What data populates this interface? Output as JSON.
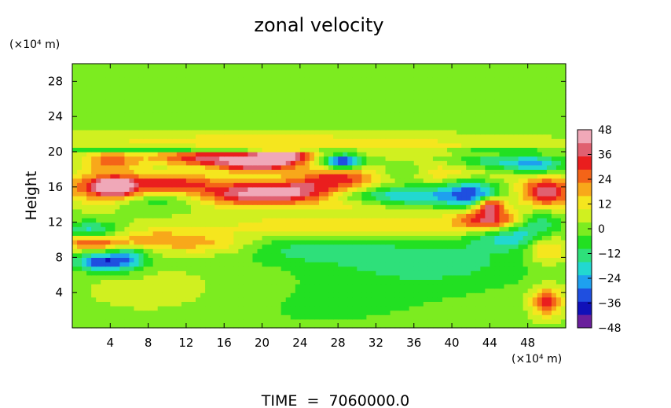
{
  "chart_data": {
    "type": "heatmap",
    "title": "zonal velocity",
    "xlabel": "",
    "ylabel": "Height",
    "x_unit": "(×10⁴ m)",
    "y_unit": "(×10⁴ m)",
    "footer": "TIME  =  7060000.0",
    "xlim": [
      0,
      52
    ],
    "ylim": [
      0,
      30
    ],
    "xticks": [
      4,
      8,
      12,
      16,
      20,
      24,
      28,
      32,
      36,
      40,
      44,
      48
    ],
    "yticks": [
      4,
      8,
      12,
      16,
      20,
      24,
      28
    ],
    "colorbar": {
      "range": [
        -48,
        48
      ],
      "ticks": [
        48,
        36,
        24,
        12,
        0,
        -12,
        -24,
        -36,
        -48
      ],
      "colors": [
        "#6a1f9c",
        "#1010b8",
        "#1f4fe0",
        "#1ea0ef",
        "#22d8d0",
        "#2ee07a",
        "#22e022",
        "#7cec20",
        "#d0f020",
        "#f5e61e",
        "#f8a81a",
        "#f46418",
        "#ea1e1e",
        "#e06070",
        "#f0a8b8"
      ]
    },
    "background_value": 2,
    "features": [
      {
        "x": 26,
        "y": 2.5,
        "sx": 14,
        "sy": 3,
        "v": -6
      },
      {
        "x": 10,
        "y": 4,
        "sx": 6,
        "sy": 2,
        "v": 6
      },
      {
        "x": 50,
        "y": 3,
        "sx": 1.2,
        "sy": 1.2,
        "v": 30
      },
      {
        "x": 2,
        "y": 9.8,
        "sx": 2.5,
        "sy": 0.6,
        "v": 30
      },
      {
        "x": 3,
        "y": 7.5,
        "sx": 2,
        "sy": 0.7,
        "v": -36
      },
      {
        "x": 6,
        "y": 8,
        "sx": 1.5,
        "sy": 1,
        "v": -20
      },
      {
        "x": 9,
        "y": 10,
        "sx": 3,
        "sy": 0.8,
        "v": 18
      },
      {
        "x": 15,
        "y": 9.5,
        "sx": 3,
        "sy": 0.8,
        "v": 14
      },
      {
        "x": 25,
        "y": 9,
        "sx": 6,
        "sy": 1.2,
        "v": -12
      },
      {
        "x": 38,
        "y": 7.5,
        "sx": 8,
        "sy": 2,
        "v": -14
      },
      {
        "x": 46,
        "y": 10.5,
        "sx": 3,
        "sy": 1,
        "v": -22
      },
      {
        "x": 50,
        "y": 9,
        "sx": 1.5,
        "sy": 1.2,
        "v": 20
      },
      {
        "x": 44,
        "y": 12.3,
        "sx": 2.5,
        "sy": 0.9,
        "v": 34
      },
      {
        "x": 49,
        "y": 12,
        "sx": 2,
        "sy": 1,
        "v": -18
      },
      {
        "x": 2,
        "y": 11,
        "sx": 2,
        "sy": 0.8,
        "v": -22
      },
      {
        "x": 30,
        "y": 11.5,
        "sx": 12,
        "sy": 1,
        "v": 14
      },
      {
        "x": 36,
        "y": 15,
        "sx": 5,
        "sy": 0.8,
        "v": -26
      },
      {
        "x": 42,
        "y": 15.5,
        "sx": 1.8,
        "sy": 1.2,
        "v": -26
      },
      {
        "x": 44,
        "y": 14,
        "sx": 1,
        "sy": 0.6,
        "v": 38
      },
      {
        "x": 50,
        "y": 15.5,
        "sx": 2,
        "sy": 1.2,
        "v": 38
      },
      {
        "x": 4,
        "y": 16,
        "sx": 3,
        "sy": 1.2,
        "v": 38
      },
      {
        "x": 4.5,
        "y": 16.1,
        "sx": 1,
        "sy": 0.5,
        "v": 48
      },
      {
        "x": 19,
        "y": 15.3,
        "sx": 4,
        "sy": 1,
        "v": 40
      },
      {
        "x": 28,
        "y": 17,
        "sx": 3,
        "sy": 1,
        "v": 30
      },
      {
        "x": 24,
        "y": 15.5,
        "sx": 3,
        "sy": 0.8,
        "v": 20
      },
      {
        "x": 11,
        "y": 16.5,
        "sx": 3,
        "sy": 0.8,
        "v": 26
      },
      {
        "x": 8,
        "y": 14.5,
        "sx": 3,
        "sy": 0.8,
        "v": -12
      },
      {
        "x": 30,
        "y": 14,
        "sx": 4,
        "sy": 0.6,
        "v": 10
      },
      {
        "x": 14,
        "y": 19.3,
        "sx": 4,
        "sy": 0.6,
        "v": 32
      },
      {
        "x": 19.5,
        "y": 18.6,
        "sx": 3,
        "sy": 0.7,
        "v": 36
      },
      {
        "x": 22,
        "y": 19.5,
        "sx": 2,
        "sy": 0.5,
        "v": 46
      },
      {
        "x": 28.5,
        "y": 18.9,
        "sx": 1.4,
        "sy": 0.6,
        "v": -44
      },
      {
        "x": 4,
        "y": 19,
        "sx": 2,
        "sy": 0.7,
        "v": 22
      },
      {
        "x": 44,
        "y": 18.8,
        "sx": 4,
        "sy": 0.7,
        "v": -22
      },
      {
        "x": 49,
        "y": 18.5,
        "sx": 2,
        "sy": 0.7,
        "v": -20
      },
      {
        "x": 40,
        "y": 18,
        "sx": 4,
        "sy": 1,
        "v": 18
      },
      {
        "x": 35,
        "y": 17.8,
        "sx": 2,
        "sy": 0.7,
        "v": -12
      },
      {
        "x": 12,
        "y": 20.4,
        "sx": 12,
        "sy": 0.2,
        "v": -30
      },
      {
        "x": 45,
        "y": 20.4,
        "sx": 4,
        "sy": 0.2,
        "v": -20
      },
      {
        "x": 26,
        "y": 20.6,
        "sx": 20,
        "sy": 0.5,
        "v": 14
      },
      {
        "x": 20,
        "y": 21.6,
        "sx": 14,
        "sy": 0.5,
        "v": 8
      }
    ]
  }
}
